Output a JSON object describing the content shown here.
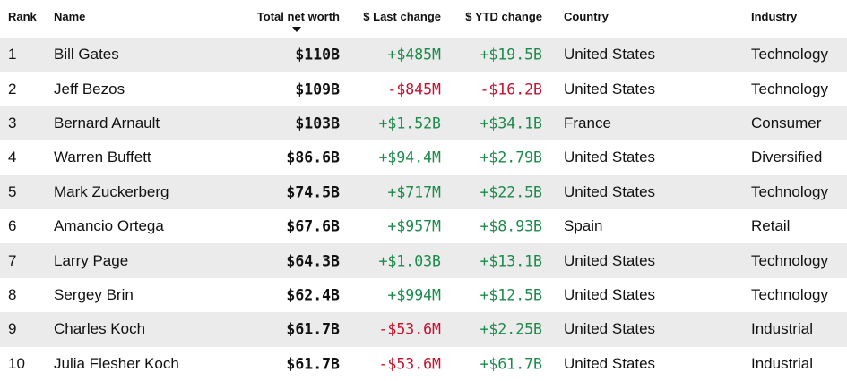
{
  "columns": {
    "rank": "Rank",
    "name": "Name",
    "worth": "Total net worth",
    "last": "$ Last change",
    "ytd": "$ YTD change",
    "country": "Country",
    "industry": "Industry"
  },
  "colors": {
    "positive": "#1b8a4a",
    "negative": "#c8102e",
    "row_shade": "#ebebeb"
  },
  "sort_icon": "caret-down-icon",
  "rows": [
    {
      "rank": "1",
      "name": "Bill Gates",
      "worth": "$110B",
      "last": "+$485M",
      "ytd": "+$19.5B",
      "country": "United States",
      "industry": "Technology"
    },
    {
      "rank": "2",
      "name": "Jeff Bezos",
      "worth": "$109B",
      "last": "-$845M",
      "ytd": "-$16.2B",
      "country": "United States",
      "industry": "Technology"
    },
    {
      "rank": "3",
      "name": "Bernard Arnault",
      "worth": "$103B",
      "last": "+$1.52B",
      "ytd": "+$34.1B",
      "country": "France",
      "industry": "Consumer"
    },
    {
      "rank": "4",
      "name": "Warren Buffett",
      "worth": "$86.6B",
      "last": "+$94.4M",
      "ytd": "+$2.79B",
      "country": "United States",
      "industry": "Diversified"
    },
    {
      "rank": "5",
      "name": "Mark Zuckerberg",
      "worth": "$74.5B",
      "last": "+$717M",
      "ytd": "+$22.5B",
      "country": "United States",
      "industry": "Technology"
    },
    {
      "rank": "6",
      "name": "Amancio Ortega",
      "worth": "$67.6B",
      "last": "+$957M",
      "ytd": "+$8.93B",
      "country": "Spain",
      "industry": "Retail"
    },
    {
      "rank": "7",
      "name": "Larry Page",
      "worth": "$64.3B",
      "last": "+$1.03B",
      "ytd": "+$13.1B",
      "country": "United States",
      "industry": "Technology"
    },
    {
      "rank": "8",
      "name": "Sergey Brin",
      "worth": "$62.4B",
      "last": "+$994M",
      "ytd": "+$12.5B",
      "country": "United States",
      "industry": "Technology"
    },
    {
      "rank": "9",
      "name": "Charles Koch",
      "worth": "$61.7B",
      "last": "-$53.6M",
      "ytd": "+$2.25B",
      "country": "United States",
      "industry": "Industrial"
    },
    {
      "rank": "10",
      "name": "Julia Flesher Koch",
      "worth": "$61.7B",
      "last": "-$53.6M",
      "ytd": "+$61.7B",
      "country": "United States",
      "industry": "Industrial"
    }
  ]
}
